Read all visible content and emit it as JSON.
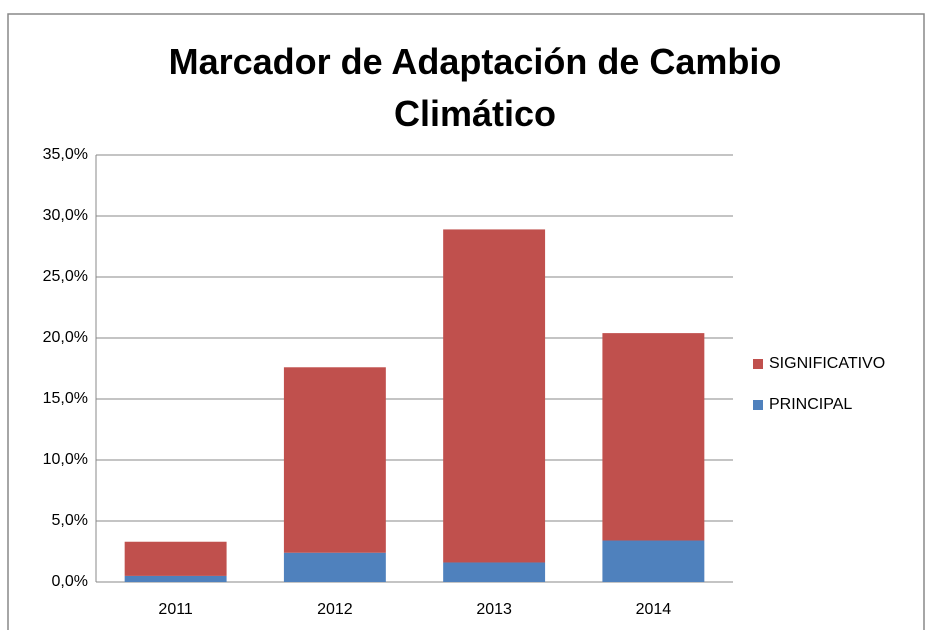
{
  "chart_data": {
    "type": "stacked_bar",
    "title": "Marcador de Adaptación de Cambio Climático",
    "categories": [
      "2011",
      "2012",
      "2013",
      "2014"
    ],
    "series": [
      {
        "name": "PRINCIPAL",
        "color": "#4f81bd",
        "values": [
          0.5,
          2.4,
          1.6,
          3.4
        ]
      },
      {
        "name": "SIGNIFICATIVO",
        "color": "#c0504d",
        "values": [
          2.8,
          15.2,
          27.3,
          17.0
        ]
      }
    ],
    "ylim": [
      0,
      35
    ],
    "yticks": [
      {
        "value": 0,
        "label": "0,0%"
      },
      {
        "value": 5,
        "label": "5,0%"
      },
      {
        "value": 10,
        "label": "10,0%"
      },
      {
        "value": 15,
        "label": "15,0%"
      },
      {
        "value": 20,
        "label": "20,0%"
      },
      {
        "value": 25,
        "label": "25,0%"
      },
      {
        "value": 30,
        "label": "30,0%"
      },
      {
        "value": 35,
        "label": "35,0%"
      }
    ],
    "grid": true,
    "legend": "right"
  }
}
